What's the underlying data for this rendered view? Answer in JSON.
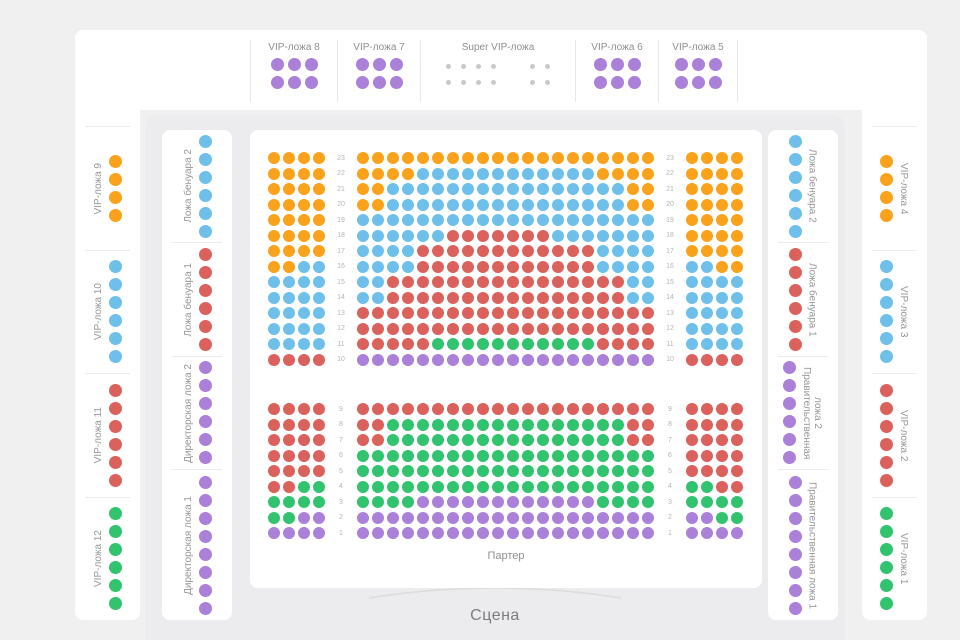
{
  "colors": {
    "O": "#FAA21C",
    "B": "#6EC0EA",
    "R": "#DB615C",
    "G": "#31C36E",
    "P": "#AA80D8",
    "x": "#C9C9C9"
  },
  "theme": {
    "page_bg": "#F0F0F1",
    "card_bg": "#FFFFFF",
    "hall_bg": "#ECECEE",
    "divider": "#E7E7E8",
    "label_color": "#969696",
    "row_number_color": "#B5B5B5",
    "box_title_color": "#8F8F8F",
    "stage_text_color": "#7C7C7C",
    "stage_arc_color": "#DCDCDA"
  },
  "top_boxes": [
    {
      "label": "VIP-ложа 8",
      "seat_rows": [
        "PPP",
        "PPP"
      ],
      "small_seats": false
    },
    {
      "label": "VIP-ложа 7",
      "seat_rows": [
        "PPP",
        "PPP"
      ],
      "small_seats": false
    },
    {
      "label": "Super VIP-ложа",
      "seat_rows": [
        "xxxx xx",
        "xxxx xx"
      ],
      "small_seats": true
    },
    {
      "label": "VIP-ложа 6",
      "seat_rows": [
        "PPP",
        "PPP"
      ],
      "small_seats": false
    },
    {
      "label": "VIP-ложа 5",
      "seat_rows": [
        "PPP",
        "PPP"
      ],
      "small_seats": false
    }
  ],
  "left_outer_boxes": [
    {
      "label": "VIP-ложа 9",
      "seats": "OOOO"
    },
    {
      "label": "VIP-ложа 10",
      "seats": "BBBBBB"
    },
    {
      "label": "VIP-ложа 11",
      "seats": "RRRRRR"
    },
    {
      "label": "VIP-ложа 12",
      "seats": "GGGGGG"
    }
  ],
  "left_inner_boxes": [
    {
      "label": "Ложа бенуара 2",
      "seats": "BBBBBB"
    },
    {
      "label": "Ложа бенуара 1",
      "seats": "RRRRRR"
    },
    {
      "label": "Директорская ложа 2",
      "seats": "PPPPPP"
    },
    {
      "label": "Директорская ложа 1",
      "seats": "PPPPPPPP"
    }
  ],
  "right_inner_boxes": [
    {
      "label": "Ложа бенуара 2",
      "seats": "BBBBBB"
    },
    {
      "label": "Ложа бенуара 1",
      "seats": "RRRRRR"
    },
    {
      "label": "Правительственная ложа 2",
      "seats": "PPPPPP"
    },
    {
      "label": "Правительственная ложа 1",
      "seats": "PPPPPPPP"
    }
  ],
  "right_outer_boxes": [
    {
      "label": "VIP-ложа 4",
      "seats": "OOOO"
    },
    {
      "label": "VIP-ложа 3",
      "seats": "BBBBBB"
    },
    {
      "label": "VIP-ложа 2",
      "seats": "RRRRRR"
    },
    {
      "label": "VIP-ложа 1",
      "seats": "GGGGGG"
    }
  ],
  "parterre": {
    "label": "Партер",
    "upper_rows": [
      {
        "n": 23,
        "left": "OOOO",
        "center": "OOOOOOOOOOOOOOOOOOOO",
        "right": "OOOO"
      },
      {
        "n": 22,
        "left": "OOOO",
        "center": "OOOOBBBBBBBBBBBBOOOO",
        "right": "OOOO"
      },
      {
        "n": 21,
        "left": "OOOO",
        "center": "OOBBBBBBBBBBBBBBBBOO",
        "right": "OOOO"
      },
      {
        "n": 20,
        "left": "OOOO",
        "center": "OOBBBBBBBBBBBBBBBBOO",
        "right": "OOOO"
      },
      {
        "n": 19,
        "left": "OOOO",
        "center": "BBBBBBBBBBBBBBBBBBBB",
        "right": "OOOO"
      },
      {
        "n": 18,
        "left": "OOOO",
        "center": "BBBBBBRRRRRRRBBBBBBB",
        "right": "OOOO"
      },
      {
        "n": 17,
        "left": "OOOO",
        "center": "BBBBRRRRRRRRRRRRBBBB",
        "right": "OOOO"
      },
      {
        "n": 16,
        "left": "OOBB",
        "center": "BBBBRRRRRRRRRRRRBBBB",
        "right": "BBOO"
      },
      {
        "n": 15,
        "left": "BBBB",
        "center": "BBRRRRRRRRRRRRRRRRBB",
        "right": "BBBB"
      },
      {
        "n": 14,
        "left": "BBBB",
        "center": "BBRRRRRRRRRRRRRRRRBB",
        "right": "BBBB"
      },
      {
        "n": 13,
        "left": "BBBB",
        "center": "RRRRRRRRRRRRRRRRRRRR",
        "right": "BBBB"
      },
      {
        "n": 12,
        "left": "BBBB",
        "center": "RRRRRRRRRRRRRRRRRRRR",
        "right": "BBBB"
      },
      {
        "n": 11,
        "left": "BBBB",
        "center": "RRRRRGGGGGGGGGGGRRRR",
        "right": "BBBB"
      },
      {
        "n": 10,
        "left": "RRRR",
        "center": "PPPPPPPPPPPPPPPPPPPP",
        "right": "RRRR"
      }
    ],
    "lower_rows": [
      {
        "n": 9,
        "left": "RRRR",
        "center": "RRRRRRRRRRRRRRRRRRRR",
        "right": "RRRR"
      },
      {
        "n": 8,
        "left": "RRRR",
        "center": "RRGGGGGGGGGGGGGGGGRR",
        "right": "RRRR"
      },
      {
        "n": 7,
        "left": "RRRR",
        "center": "RRGGGGGGGGGGGGGGGGRR",
        "right": "RRRR"
      },
      {
        "n": 6,
        "left": "RRRR",
        "center": "GGGGGGGGGGGGGGGGGGGG",
        "right": "RRRR"
      },
      {
        "n": 5,
        "left": "RRRR",
        "center": "GGGGGGGGGGGGGGGGGGGG",
        "right": "RRRR"
      },
      {
        "n": 4,
        "left": "RRGG",
        "center": "GGGGGGGGGGGGGGGGGGGG",
        "right": "GGRR"
      },
      {
        "n": 3,
        "left": "GGGG",
        "center": "GGGGPPPPPPPPPPPPGGGG",
        "right": "GGGG"
      },
      {
        "n": 2,
        "left": "GGPP",
        "center": "PPPPPPPPPPPPPPPPPPPP",
        "right": "PPGG"
      },
      {
        "n": 1,
        "left": "PPPP",
        "center": "PPPPPPPPPPPPPPPPPPPP",
        "right": "PPPP"
      }
    ]
  },
  "stage": {
    "label": "Сцена"
  }
}
